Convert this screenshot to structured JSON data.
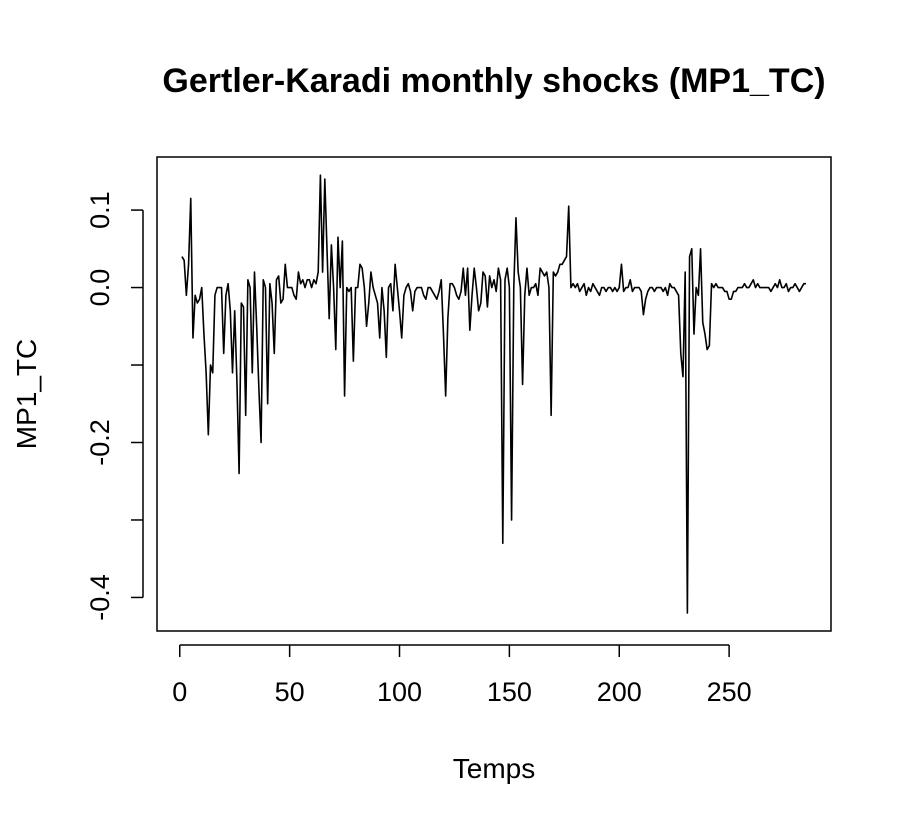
{
  "chart_data": {
    "type": "line",
    "title": "Gertler-Karadi monthly shocks (MP1_TC)",
    "x_label": "Temps",
    "y_label": "MP1_TC",
    "color": "#000000",
    "xlim": [
      -10.36,
      296.36
    ],
    "ylim": [
      -0.4433,
      0.1685
    ],
    "xticks": [
      0,
      50,
      100,
      150,
      200,
      250
    ],
    "yticks": [
      {
        "value": -0.4,
        "label": "-0.4"
      },
      {
        "value": -0.3,
        "label": null
      },
      {
        "value": -0.2,
        "label": "-0.2"
      },
      {
        "value": -0.1,
        "label": null
      },
      {
        "value": 0,
        "label": "0.0"
      },
      {
        "value": 0.1,
        "label": "0.1"
      }
    ],
    "x": [
      1,
      2,
      3,
      4,
      5,
      6,
      7,
      8,
      9,
      10,
      11,
      12,
      13,
      14,
      15,
      16,
      17,
      18,
      19,
      20,
      21,
      22,
      23,
      24,
      25,
      26,
      27,
      28,
      29,
      30,
      31,
      32,
      33,
      34,
      35,
      36,
      37,
      38,
      39,
      40,
      41,
      42,
      43,
      44,
      45,
      46,
      47,
      48,
      49,
      50,
      51,
      52,
      53,
      54,
      55,
      56,
      57,
      58,
      59,
      60,
      61,
      62,
      63,
      64,
      65,
      66,
      67,
      68,
      69,
      70,
      71,
      72,
      73,
      74,
      75,
      76,
      77,
      78,
      79,
      80,
      81,
      82,
      83,
      84,
      85,
      86,
      87,
      88,
      89,
      90,
      91,
      92,
      93,
      94,
      95,
      96,
      97,
      98,
      99,
      100,
      101,
      102,
      103,
      104,
      105,
      106,
      107,
      108,
      109,
      110,
      111,
      112,
      113,
      114,
      115,
      116,
      117,
      118,
      119,
      120,
      121,
      122,
      123,
      124,
      125,
      126,
      127,
      128,
      129,
      130,
      131,
      132,
      133,
      134,
      135,
      136,
      137,
      138,
      139,
      140,
      141,
      142,
      143,
      144,
      145,
      146,
      147,
      148,
      149,
      150,
      151,
      152,
      153,
      154,
      155,
      156,
      157,
      158,
      159,
      160,
      161,
      162,
      163,
      164,
      165,
      166,
      167,
      168,
      169,
      170,
      171,
      172,
      173,
      174,
      175,
      176,
      177,
      178,
      179,
      180,
      181,
      182,
      183,
      184,
      185,
      186,
      187,
      188,
      189,
      190,
      191,
      192,
      193,
      194,
      195,
      196,
      197,
      198,
      199,
      200,
      201,
      202,
      203,
      204,
      205,
      206,
      207,
      208,
      209,
      210,
      211,
      212,
      213,
      214,
      215,
      216,
      217,
      218,
      219,
      220,
      221,
      222,
      223,
      224,
      225,
      226,
      227,
      228,
      229,
      230,
      231,
      232,
      233,
      234,
      235,
      236,
      237,
      238,
      239,
      240,
      241,
      242,
      243,
      244,
      245,
      246,
      247,
      248,
      249,
      250,
      251,
      252,
      253,
      254,
      255,
      256,
      257,
      258,
      259,
      260,
      261,
      262,
      263,
      264,
      265,
      266,
      267,
      268,
      269,
      270,
      271,
      272,
      273,
      274,
      275,
      276,
      277,
      278,
      279,
      280,
      281,
      282,
      283,
      284,
      285
    ],
    "values": [
      0.04,
      0.035,
      -0.01,
      0.03,
      0.115,
      -0.065,
      -0.01,
      -0.02,
      -0.015,
      0.0,
      -0.06,
      -0.11,
      -0.19,
      -0.1,
      -0.11,
      -0.01,
      0.0,
      0.0,
      0.0,
      -0.085,
      -0.01,
      0.005,
      -0.03,
      -0.11,
      -0.03,
      -0.12,
      -0.24,
      -0.02,
      -0.025,
      -0.165,
      0.01,
      0.0,
      -0.11,
      0.02,
      -0.05,
      -0.13,
      -0.2,
      0.01,
      0.0,
      -0.15,
      0.005,
      -0.02,
      -0.085,
      0.01,
      0.015,
      -0.02,
      -0.015,
      0.03,
      0.0,
      0.0,
      0.0,
      -0.01,
      -0.015,
      0.02,
      0.005,
      0.01,
      0.0,
      0.01,
      0.01,
      0.0,
      0.01,
      0.005,
      0.02,
      0.145,
      0.02,
      0.14,
      0.05,
      -0.04,
      0.055,
      0.0,
      -0.08,
      0.065,
      0.0,
      0.06,
      -0.14,
      0.0,
      -0.005,
      0.0,
      -0.095,
      0.0,
      0.0,
      0.03,
      0.025,
      0.0,
      -0.05,
      -0.02,
      0.02,
      0.0,
      -0.01,
      -0.02,
      -0.065,
      0.0,
      -0.03,
      -0.09,
      0.0,
      0.005,
      -0.03,
      0.03,
      0.0,
      -0.03,
      -0.065,
      -0.01,
      0.0,
      0.005,
      -0.005,
      -0.03,
      -0.005,
      0.0,
      0.0,
      0.0,
      -0.01,
      -0.015,
      0.0,
      0.0,
      -0.005,
      -0.01,
      -0.015,
      -0.005,
      0.01,
      -0.06,
      -0.14,
      -0.04,
      0.005,
      0.005,
      0.0,
      -0.01,
      -0.015,
      -0.005,
      0.025,
      -0.01,
      0.025,
      -0.055,
      -0.01,
      0.025,
      0.0,
      -0.03,
      -0.02,
      0.02,
      0.015,
      -0.025,
      0.015,
      0.0,
      0.01,
      -0.005,
      0.025,
      0.01,
      -0.33,
      0.01,
      0.025,
      0.0,
      -0.3,
      0.0,
      0.09,
      0.02,
      0.0,
      -0.125,
      -0.01,
      0.025,
      -0.01,
      0.0,
      0.0,
      0.005,
      -0.01,
      0.025,
      0.02,
      0.015,
      0.02,
      0.0,
      -0.165,
      0.02,
      0.015,
      0.02,
      0.03,
      0.03,
      0.035,
      0.04,
      0.105,
      0.0,
      0.005,
      0.0,
      0.005,
      -0.005,
      0.0,
      0.005,
      -0.01,
      0.0,
      -0.005,
      0.005,
      0.0,
      -0.005,
      -0.01,
      0.0,
      0.0,
      -0.005,
      0.0,
      0.0,
      -0.005,
      0.0,
      -0.005,
      0.0,
      0.03,
      -0.005,
      0.0,
      0.0,
      0.01,
      -0.005,
      0.0,
      0.0,
      0.0,
      -0.005,
      -0.035,
      -0.015,
      -0.005,
      0.0,
      0.0,
      -0.005,
      0.0,
      0.0,
      0.0,
      -0.005,
      0.0,
      -0.01,
      0.005,
      0.0,
      0.0,
      -0.005,
      -0.01,
      -0.085,
      -0.115,
      0.02,
      -0.42,
      0.04,
      0.05,
      -0.06,
      0.0,
      -0.01,
      0.05,
      -0.045,
      -0.06,
      -0.08,
      -0.075,
      0.005,
      0.0,
      0.005,
      0.0,
      0.0,
      0.0,
      -0.005,
      -0.005,
      -0.015,
      -0.015,
      -0.005,
      -0.005,
      0.0,
      0.0,
      0.0,
      0.005,
      0.0,
      0.0,
      0.005,
      0.01,
      0.0,
      0.005,
      0.0,
      0.0,
      0.0,
      0.0,
      0.0,
      -0.005,
      0.0,
      0.005,
      0.0,
      0.01,
      0.0,
      0.0,
      0.005,
      -0.005,
      0.0,
      0.0,
      0.005,
      0.0,
      -0.005,
      0.0,
      0.005,
      0.005
    ]
  }
}
